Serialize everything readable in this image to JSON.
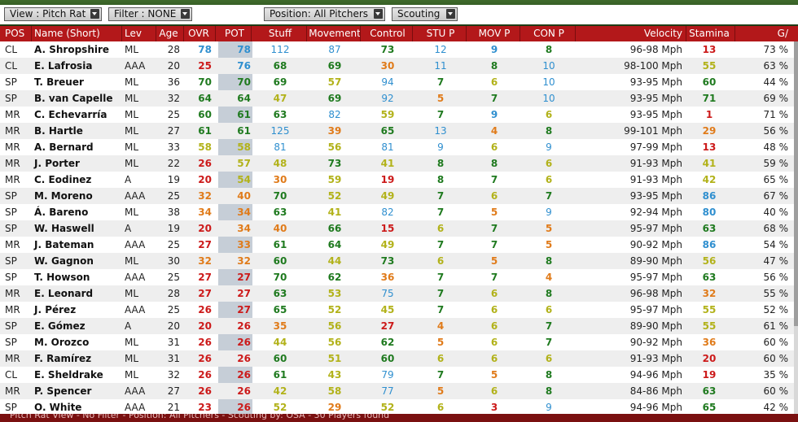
{
  "toolbar": {
    "view": "View : Pitch Rat",
    "filter": "Filter : NONE",
    "position": "Position: All Pitchers",
    "scouting": "Scouting"
  },
  "columns": [
    "POS",
    "Name (Short)",
    "Lev",
    "Age",
    "OVR",
    "POT",
    "Stuff",
    "Movement",
    "Control",
    "STU P",
    "MOV P",
    "CON P",
    "Velocity",
    "Stamina",
    "G/"
  ],
  "colors": {
    "blue": "#2f8fcf",
    "green": "#1f7a1f",
    "olive": "#b2b21a",
    "orange": "#e07b1a",
    "red": "#cc1a1a"
  },
  "rows": [
    {
      "pos": "CL",
      "name": "A. Shropshire",
      "lev": "ML",
      "age": "28",
      "ovr": "78",
      "pot": "78",
      "stuff": "112",
      "movement": "87",
      "control": "73",
      "stu_p": "12",
      "mov_p": "9",
      "con_p": "8",
      "velocity": "96-98 Mph",
      "stamina": "13",
      "g": "73 %"
    },
    {
      "pos": "CL",
      "name": "E. Lafrosia",
      "lev": "AAA",
      "age": "20",
      "ovr": "25",
      "pot": "76",
      "stuff": "68",
      "movement": "69",
      "control": "30",
      "stu_p": "11",
      "mov_p": "8",
      "con_p": "10",
      "velocity": "98-100 Mph",
      "stamina": "55",
      "g": "63 %"
    },
    {
      "pos": "SP",
      "name": "T. Breuer",
      "lev": "ML",
      "age": "36",
      "ovr": "70",
      "pot": "70",
      "stuff": "69",
      "movement": "57",
      "control": "94",
      "stu_p": "7",
      "mov_p": "6",
      "con_p": "10",
      "velocity": "93-95 Mph",
      "stamina": "60",
      "g": "44 %"
    },
    {
      "pos": "SP",
      "name": "B. van Capelle",
      "lev": "ML",
      "age": "32",
      "ovr": "64",
      "pot": "64",
      "stuff": "47",
      "movement": "69",
      "control": "92",
      "stu_p": "5",
      "mov_p": "7",
      "con_p": "10",
      "velocity": "93-95 Mph",
      "stamina": "71",
      "g": "69 %"
    },
    {
      "pos": "MR",
      "name": "C. Echevarría",
      "lev": "ML",
      "age": "25",
      "ovr": "60",
      "pot": "61",
      "stuff": "63",
      "movement": "82",
      "control": "59",
      "stu_p": "7",
      "mov_p": "9",
      "con_p": "6",
      "velocity": "93-95 Mph",
      "stamina": "1",
      "g": "71 %"
    },
    {
      "pos": "MR",
      "name": "B. Hartle",
      "lev": "ML",
      "age": "27",
      "ovr": "61",
      "pot": "61",
      "stuff": "125",
      "movement": "39",
      "control": "65",
      "stu_p": "13",
      "mov_p": "4",
      "con_p": "8",
      "velocity": "99-101 Mph",
      "stamina": "29",
      "g": "56 %"
    },
    {
      "pos": "MR",
      "name": "A. Bernard",
      "lev": "ML",
      "age": "33",
      "ovr": "58",
      "pot": "58",
      "stuff": "81",
      "movement": "56",
      "control": "81",
      "stu_p": "9",
      "mov_p": "6",
      "con_p": "9",
      "velocity": "97-99 Mph",
      "stamina": "13",
      "g": "48 %"
    },
    {
      "pos": "MR",
      "name": "J. Porter",
      "lev": "ML",
      "age": "22",
      "ovr": "26",
      "pot": "57",
      "stuff": "48",
      "movement": "73",
      "control": "41",
      "stu_p": "8",
      "mov_p": "8",
      "con_p": "6",
      "velocity": "91-93 Mph",
      "stamina": "41",
      "g": "59 %"
    },
    {
      "pos": "MR",
      "name": "C. Eodinez",
      "lev": "A",
      "age": "19",
      "ovr": "20",
      "pot": "54",
      "stuff": "30",
      "movement": "59",
      "control": "19",
      "stu_p": "8",
      "mov_p": "7",
      "con_p": "6",
      "velocity": "91-93 Mph",
      "stamina": "42",
      "g": "65 %"
    },
    {
      "pos": "SP",
      "name": "M. Moreno",
      "lev": "AAA",
      "age": "25",
      "ovr": "32",
      "pot": "40",
      "stuff": "70",
      "movement": "52",
      "control": "49",
      "stu_p": "7",
      "mov_p": "6",
      "con_p": "7",
      "velocity": "93-95 Mph",
      "stamina": "86",
      "g": "67 %"
    },
    {
      "pos": "SP",
      "name": "Á. Bareno",
      "lev": "ML",
      "age": "38",
      "ovr": "34",
      "pot": "34",
      "stuff": "63",
      "movement": "41",
      "control": "82",
      "stu_p": "7",
      "mov_p": "5",
      "con_p": "9",
      "velocity": "92-94 Mph",
      "stamina": "80",
      "g": "40 %"
    },
    {
      "pos": "SP",
      "name": "W. Haswell",
      "lev": "A",
      "age": "19",
      "ovr": "20",
      "pot": "34",
      "stuff": "40",
      "movement": "66",
      "control": "15",
      "stu_p": "6",
      "mov_p": "7",
      "con_p": "5",
      "velocity": "95-97 Mph",
      "stamina": "63",
      "g": "68 %"
    },
    {
      "pos": "MR",
      "name": "J. Bateman",
      "lev": "AAA",
      "age": "25",
      "ovr": "27",
      "pot": "33",
      "stuff": "61",
      "movement": "64",
      "control": "49",
      "stu_p": "7",
      "mov_p": "7",
      "con_p": "5",
      "velocity": "90-92 Mph",
      "stamina": "86",
      "g": "54 %"
    },
    {
      "pos": "SP",
      "name": "W. Gagnon",
      "lev": "ML",
      "age": "30",
      "ovr": "32",
      "pot": "32",
      "stuff": "60",
      "movement": "44",
      "control": "73",
      "stu_p": "6",
      "mov_p": "5",
      "con_p": "8",
      "velocity": "89-90 Mph",
      "stamina": "56",
      "g": "47 %"
    },
    {
      "pos": "SP",
      "name": "T. Howson",
      "lev": "AAA",
      "age": "25",
      "ovr": "27",
      "pot": "27",
      "stuff": "70",
      "movement": "62",
      "control": "36",
      "stu_p": "7",
      "mov_p": "7",
      "con_p": "4",
      "velocity": "95-97 Mph",
      "stamina": "63",
      "g": "56 %"
    },
    {
      "pos": "MR",
      "name": "E. Leonard",
      "lev": "ML",
      "age": "28",
      "ovr": "27",
      "pot": "27",
      "stuff": "63",
      "movement": "53",
      "control": "75",
      "stu_p": "7",
      "mov_p": "6",
      "con_p": "8",
      "velocity": "96-98 Mph",
      "stamina": "32",
      "g": "55 %"
    },
    {
      "pos": "MR",
      "name": "J. Pérez",
      "lev": "AAA",
      "age": "25",
      "ovr": "26",
      "pot": "27",
      "stuff": "65",
      "movement": "52",
      "control": "45",
      "stu_p": "7",
      "mov_p": "6",
      "con_p": "6",
      "velocity": "95-97 Mph",
      "stamina": "55",
      "g": "52 %"
    },
    {
      "pos": "SP",
      "name": "E. Gómez",
      "lev": "A",
      "age": "20",
      "ovr": "20",
      "pot": "26",
      "stuff": "35",
      "movement": "56",
      "control": "27",
      "stu_p": "4",
      "mov_p": "6",
      "con_p": "7",
      "velocity": "89-90 Mph",
      "stamina": "55",
      "g": "61 %"
    },
    {
      "pos": "SP",
      "name": "M. Orozco",
      "lev": "ML",
      "age": "31",
      "ovr": "26",
      "pot": "26",
      "stuff": "44",
      "movement": "56",
      "control": "62",
      "stu_p": "5",
      "mov_p": "6",
      "con_p": "7",
      "velocity": "90-92 Mph",
      "stamina": "36",
      "g": "60 %"
    },
    {
      "pos": "MR",
      "name": "F. Ramírez",
      "lev": "ML",
      "age": "31",
      "ovr": "26",
      "pot": "26",
      "stuff": "60",
      "movement": "51",
      "control": "60",
      "stu_p": "6",
      "mov_p": "6",
      "con_p": "6",
      "velocity": "91-93 Mph",
      "stamina": "20",
      "g": "60 %"
    },
    {
      "pos": "CL",
      "name": "E. Sheldrake",
      "lev": "ML",
      "age": "32",
      "ovr": "26",
      "pot": "26",
      "stuff": "61",
      "movement": "43",
      "control": "79",
      "stu_p": "7",
      "mov_p": "5",
      "con_p": "8",
      "velocity": "94-96 Mph",
      "stamina": "19",
      "g": "35 %"
    },
    {
      "pos": "MR",
      "name": "P. Spencer",
      "lev": "AAA",
      "age": "27",
      "ovr": "26",
      "pot": "26",
      "stuff": "42",
      "movement": "58",
      "control": "77",
      "stu_p": "5",
      "mov_p": "6",
      "con_p": "8",
      "velocity": "84-86 Mph",
      "stamina": "63",
      "g": "60 %"
    },
    {
      "pos": "SP",
      "name": "O. White",
      "lev": "AAA",
      "age": "21",
      "ovr": "23",
      "pot": "26",
      "stuff": "52",
      "movement": "29",
      "control": "52",
      "stu_p": "6",
      "mov_p": "3",
      "con_p": "9",
      "velocity": "94-96 Mph",
      "stamina": "65",
      "g": "42 %"
    }
  ],
  "status": "Pitch Rat View - No Filter - Position: All Pitchers - Scouting by: OSA - 30 Players found"
}
